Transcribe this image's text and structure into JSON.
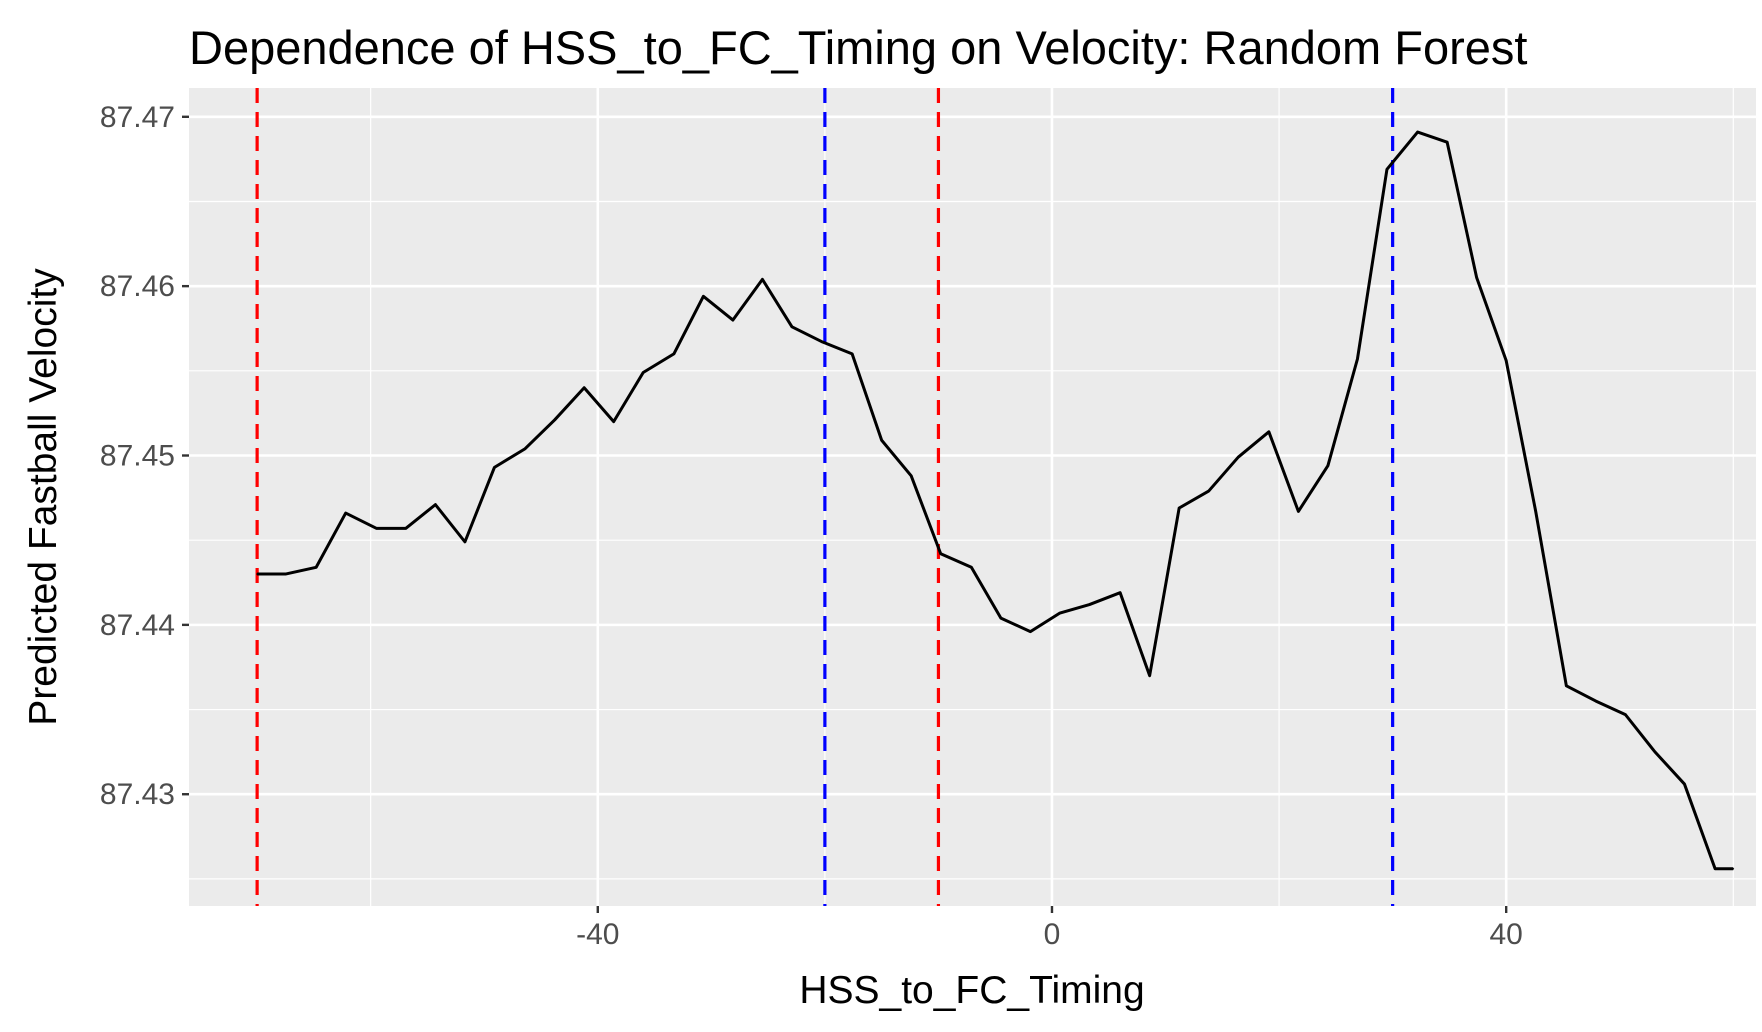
{
  "chart_data": {
    "type": "line",
    "title": "Dependence of HSS_to_FC_Timing on Velocity: Random Forest",
    "xlabel": "HSS_to_FC_Timing",
    "ylabel": "Predicted Fastball Velocity",
    "xlim": [
      -76,
      62
    ],
    "ylim": [
      87.4234,
      87.4717
    ],
    "x_ticks": [
      -40,
      0,
      40
    ],
    "x_tick_labels": [
      "-40",
      "0",
      "40"
    ],
    "y_ticks": [
      87.43,
      87.44,
      87.45,
      87.46,
      87.47
    ],
    "y_tick_labels": [
      "87.43",
      "87.44",
      "87.45",
      "87.46",
      "87.47"
    ],
    "grid": true,
    "background": "#ebebeb",
    "grid_color": "#ffffff",
    "series": [
      {
        "color": "#000000",
        "x": [
          -70,
          -67.5,
          -64.8,
          -62.2,
          -59.5,
          -56.9,
          -54.3,
          -51.7,
          -49.1,
          -46.4,
          -43.8,
          -41.2,
          -38.6,
          -36,
          -33.3,
          -30.7,
          -28.1,
          -25.5,
          -22.9,
          -20.2,
          -17.6,
          -15,
          -12.4,
          -9.8,
          -7.1,
          -4.5,
          -1.9,
          0.7,
          3.3,
          6,
          8.6,
          11.2,
          13.8,
          16.4,
          19.1,
          21.7,
          24.3,
          26.9,
          29.5,
          32.2,
          34.8,
          37.4,
          40,
          42.6,
          45.3,
          47.9,
          50.5,
          53.1,
          55.7,
          58.4,
          60
        ],
        "y": [
          87.443,
          87.443,
          87.4434,
          87.4466,
          87.4457,
          87.4457,
          87.4471,
          87.4449,
          87.4493,
          87.4504,
          87.4521,
          87.454,
          87.452,
          87.4549,
          87.456,
          87.4594,
          87.458,
          87.4604,
          87.4576,
          87.4567,
          87.456,
          87.4509,
          87.4488,
          87.4442,
          87.4434,
          87.4404,
          87.4396,
          87.4407,
          87.4412,
          87.4419,
          87.437,
          87.4469,
          87.4479,
          87.4499,
          87.4514,
          87.4467,
          87.4494,
          87.4557,
          87.4669,
          87.4691,
          87.4685,
          87.4605,
          87.4556,
          87.4467,
          87.4364,
          87.4355,
          87.4347,
          87.4325,
          87.4306,
          87.4256,
          87.4256
        ]
      }
    ],
    "vlines": [
      {
        "x": -70,
        "color": "#ff0000",
        "style": "dashed"
      },
      {
        "x": -20,
        "color": "#0000ff",
        "style": "dashed"
      },
      {
        "x": -10,
        "color": "#ff0000",
        "style": "dashed"
      },
      {
        "x": 30,
        "color": "#0000ff",
        "style": "dashed"
      }
    ]
  }
}
